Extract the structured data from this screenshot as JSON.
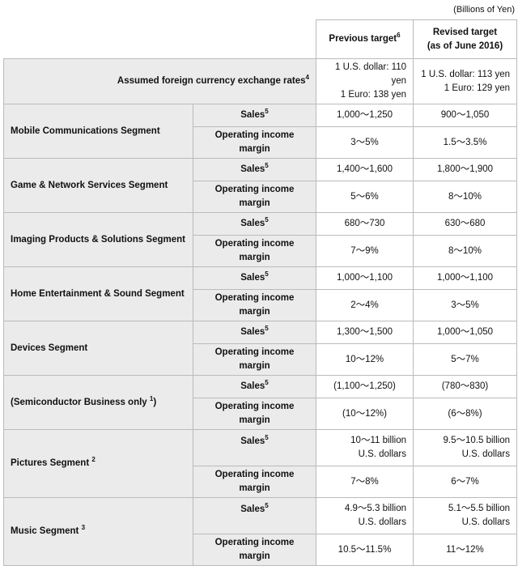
{
  "unit": "(Billions of Yen)",
  "header": {
    "previous": {
      "text": "Previous target",
      "sup": "6"
    },
    "revised": [
      "Revised target",
      "(as of June 2016)"
    ]
  },
  "exchange": {
    "label": "Assumed foreign currency exchange rates",
    "sup": "4",
    "previous": [
      "1 U.S. dollar: 110 yen",
      "1 Euro: 138 yen"
    ],
    "revised": [
      "1 U.S. dollar: 113 yen",
      "1 Euro: 129 yen"
    ]
  },
  "segments": [
    {
      "name": "Mobile Communications Segment",
      "rows": [
        {
          "label": "Sales",
          "sup": "5",
          "previous": [
            "1,000～1,250"
          ],
          "revised": [
            "900～1,050"
          ]
        },
        {
          "label": "Operating income margin",
          "previous": [
            "3～5%"
          ],
          "revised": [
            "1.5～3.5%"
          ]
        }
      ]
    },
    {
      "name": "Game & Network Services Segment",
      "rows": [
        {
          "label": "Sales",
          "sup": "5",
          "previous": [
            "1,400～1,600"
          ],
          "revised": [
            "1,800～1,900"
          ]
        },
        {
          "label": "Operating income margin",
          "previous": [
            "5～6%"
          ],
          "revised": [
            "8～10%"
          ]
        }
      ]
    },
    {
      "name": "Imaging Products & Solutions Segment",
      "rows": [
        {
          "label": "Sales",
          "sup": "5",
          "previous": [
            "680～730"
          ],
          "revised": [
            "630～680"
          ]
        },
        {
          "label": "Operating income margin",
          "previous": [
            "7～9%"
          ],
          "revised": [
            "8～10%"
          ]
        }
      ]
    },
    {
      "name": "Home Entertainment & Sound Segment",
      "rows": [
        {
          "label": "Sales",
          "sup": "5",
          "previous": [
            "1,000～1,100"
          ],
          "revised": [
            "1,000～1,100"
          ]
        },
        {
          "label": "Operating income margin",
          "previous": [
            "2～4%"
          ],
          "revised": [
            "3～5%"
          ]
        }
      ]
    },
    {
      "name": "Devices Segment",
      "rows": [
        {
          "label": "Sales",
          "sup": "5",
          "previous": [
            "1,300～1,500"
          ],
          "revised": [
            "1,000～1,050"
          ]
        },
        {
          "label": "Operating income margin",
          "previous": [
            "10～12%"
          ],
          "revised": [
            "5～7%"
          ]
        }
      ]
    },
    {
      "name": "(Semiconductor Business only",
      "sup": "1",
      "after": ")",
      "rows": [
        {
          "label": "Sales",
          "sup": "5",
          "previous": [
            "(1,100～1,250)"
          ],
          "revised": [
            "(780～830)"
          ]
        },
        {
          "label": "Operating income margin",
          "previous": [
            "(10～12%)"
          ],
          "revised": [
            "(6～8%)"
          ]
        }
      ]
    },
    {
      "name": "Pictures Segment",
      "sup": "2",
      "rows": [
        {
          "label": "Sales",
          "sup": "5",
          "previous": [
            "10～11 billion",
            "U.S. dollars"
          ],
          "revised": [
            "9.5～10.5 billion",
            "U.S. dollars"
          ]
        },
        {
          "label": "Operating income margin",
          "previous": [
            "7～8%"
          ],
          "revised": [
            "6～7%"
          ]
        }
      ]
    },
    {
      "name": "Music Segment",
      "sup": "3",
      "rows": [
        {
          "label": "Sales",
          "sup": "5",
          "previous": [
            "4.9～5.3 billion",
            "U.S. dollars"
          ],
          "revised": [
            "5.1～5.5 billion",
            "U.S. dollars"
          ]
        },
        {
          "label": "Operating income margin",
          "previous": [
            "10.5～11.5%"
          ],
          "revised": [
            "11～12%"
          ]
        }
      ]
    }
  ]
}
